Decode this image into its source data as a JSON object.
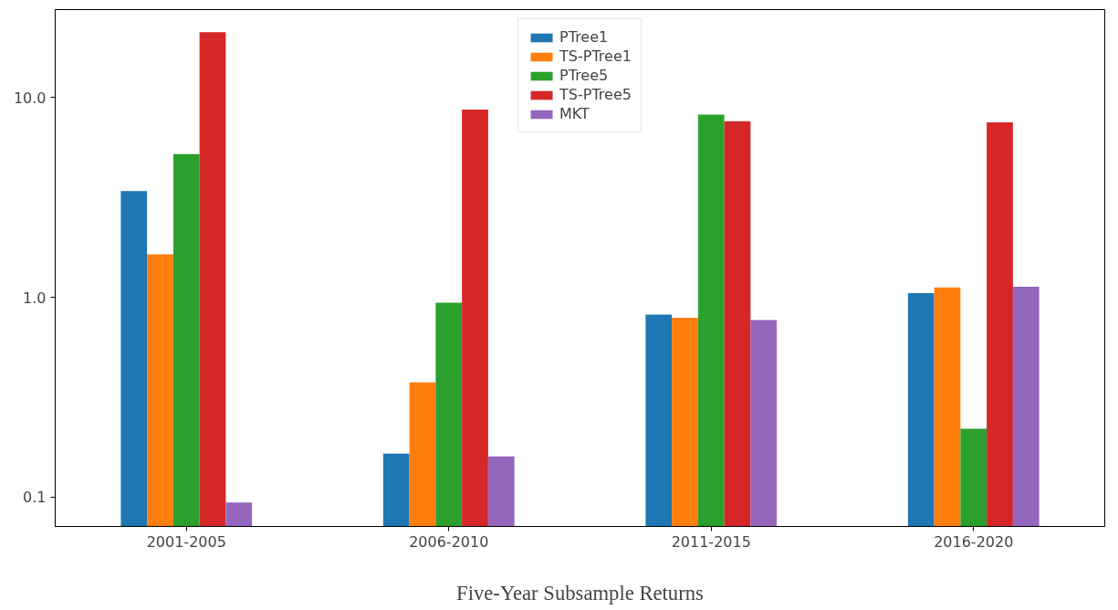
{
  "chart_data": {
    "type": "bar",
    "xlabel": "Five-Year Subsample Returns",
    "categories": [
      "2001-2005",
      "2006-2010",
      "2011-2015",
      "2016-2020"
    ],
    "series": [
      {
        "name": "PTree1",
        "color": "#1f77b4",
        "values": [
          3.4,
          0.165,
          0.82,
          1.05
        ]
      },
      {
        "name": "TS-PTree1",
        "color": "#ff7f0e",
        "values": [
          1.64,
          0.375,
          0.79,
          1.12
        ]
      },
      {
        "name": "PTree5",
        "color": "#2ca02c",
        "values": [
          5.2,
          0.94,
          8.2,
          0.22
        ]
      },
      {
        "name": "TS-PTree5",
        "color": "#d62728",
        "values": [
          21.2,
          8.7,
          7.6,
          7.5
        ]
      },
      {
        "name": "MKT",
        "color": "#9467bd",
        "values": [
          0.094,
          0.16,
          0.77,
          1.13
        ]
      }
    ],
    "log": "y",
    "ylim": [
      0.0714,
      27.5
    ],
    "yticks": [
      {
        "value": 0.1,
        "label": "0.1"
      },
      {
        "value": 1,
        "label": "1.0"
      },
      {
        "value": 10,
        "label": "10.0"
      }
    ],
    "grid": false,
    "legend": "top"
  }
}
